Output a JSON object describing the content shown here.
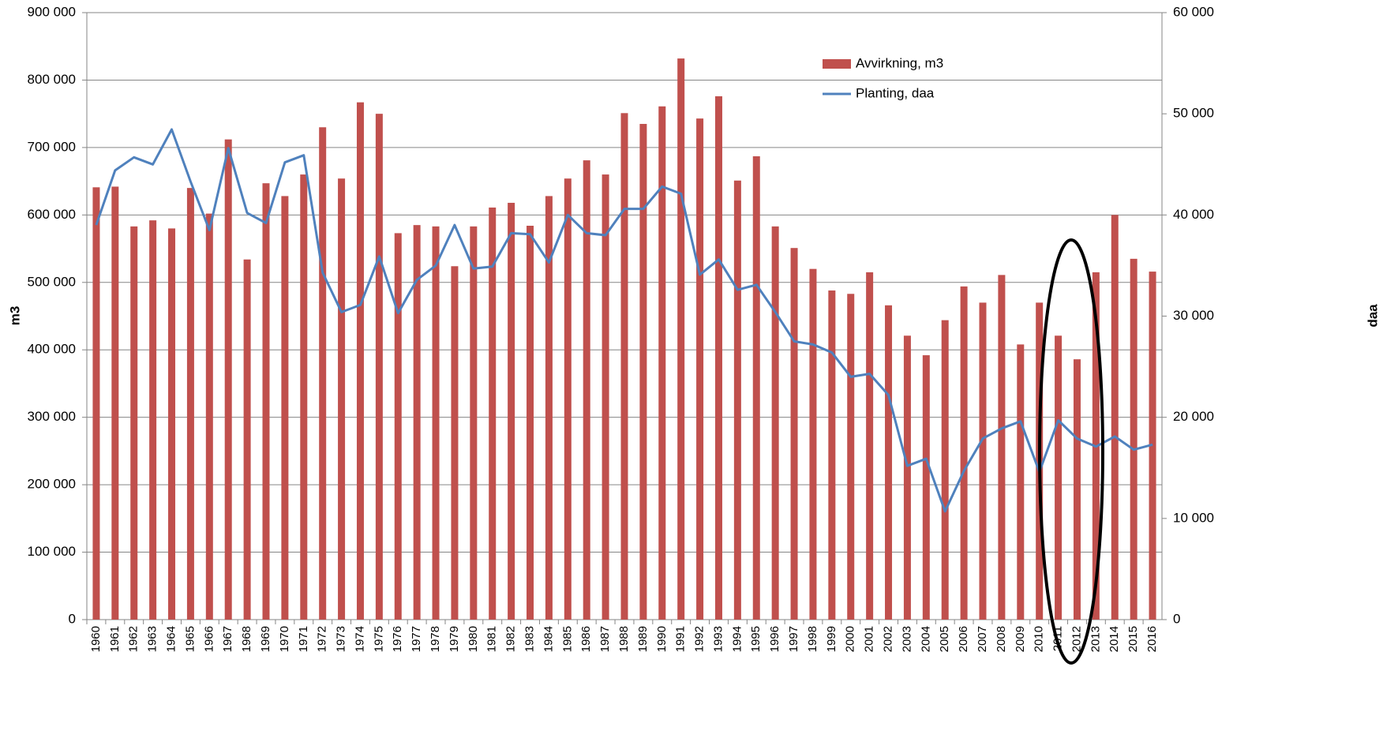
{
  "chart_data": {
    "type": "bar",
    "y_label": "m3",
    "y2_label": "daa",
    "categories": [
      "1960",
      "1961",
      "1962",
      "1963",
      "1964",
      "1965",
      "1966",
      "1967",
      "1968",
      "1969",
      "1970",
      "1971",
      "1972",
      "1973",
      "1974",
      "1975",
      "1976",
      "1977",
      "1978",
      "1979",
      "1980",
      "1981",
      "1982",
      "1983",
      "1984",
      "1985",
      "1986",
      "1987",
      "1988",
      "1989",
      "1990",
      "1991",
      "1992",
      "1993",
      "1994",
      "1995",
      "1996",
      "1997",
      "1998",
      "1999",
      "2000",
      "2001",
      "2002",
      "2003",
      "2004",
      "2005",
      "2006",
      "2007",
      "2008",
      "2009",
      "2010",
      "2011",
      "2012",
      "2013",
      "2014",
      "2015",
      "2016"
    ],
    "series": [
      {
        "name": "Avvirkning, m3",
        "type": "bar",
        "color": "#c0504d",
        "axis": "y",
        "values": [
          641000,
          642000,
          583000,
          592000,
          580000,
          640000,
          602000,
          712000,
          534000,
          647000,
          628000,
          660000,
          730000,
          654000,
          767000,
          750000,
          573000,
          585000,
          583000,
          524000,
          583000,
          611000,
          618000,
          584000,
          628000,
          654000,
          681000,
          660000,
          751000,
          735000,
          761000,
          832000,
          743000,
          776000,
          651000,
          687000,
          583000,
          551000,
          520000,
          488000,
          483000,
          515000,
          466000,
          421000,
          392000,
          444000,
          494000,
          470000,
          511000,
          408000,
          470000,
          421000,
          386000,
          515000,
          600000,
          535000,
          516000
        ]
      },
      {
        "name": "Planting, daa",
        "type": "line",
        "color": "#4f81bd",
        "axis": "y2",
        "values": [
          39000,
          44400,
          45700,
          45000,
          48450,
          43300,
          38500,
          46600,
          40200,
          39200,
          45200,
          45900,
          34300,
          30400,
          31100,
          35900,
          30300,
          33600,
          35000,
          39000,
          34700,
          34900,
          38200,
          38100,
          35300,
          40000,
          38200,
          38000,
          40600,
          40600,
          42800,
          42100,
          34100,
          35600,
          32600,
          33100,
          30400,
          27500,
          27200,
          26400,
          24000,
          24300,
          22200,
          15200,
          15900,
          10700,
          14700,
          17900,
          18900,
          19600,
          14600,
          19700,
          17900,
          17100,
          18100,
          16800,
          17300
        ]
      }
    ],
    "ylim": [
      0,
      900000
    ],
    "yticks": [
      0,
      {
        "value": 100000,
        "label": "100 000"
      },
      {
        "value": 200000,
        "label": "200 000"
      },
      {
        "value": 300000,
        "label": "300 000"
      },
      {
        "value": 400000,
        "label": "400 000"
      },
      {
        "value": 500000,
        "label": "500 000"
      },
      {
        "value": 600000,
        "label": "600 000"
      },
      {
        "value": 700000,
        "label": "700 000"
      },
      {
        "value": 800000,
        "label": "800 000"
      },
      {
        "value": 900000,
        "label": "900 000"
      }
    ],
    "y2lim": [
      0,
      60000
    ],
    "y2ticks": [
      0,
      {
        "value": 10000,
        "label": "10 000"
      },
      {
        "value": 20000,
        "label": "20 000"
      },
      {
        "value": 30000,
        "label": "30 000"
      },
      {
        "value": 40000,
        "label": "40 000"
      },
      {
        "value": 50000,
        "label": "50 000"
      },
      {
        "value": 60000,
        "label": "60 000"
      }
    ],
    "grid": true
  }
}
